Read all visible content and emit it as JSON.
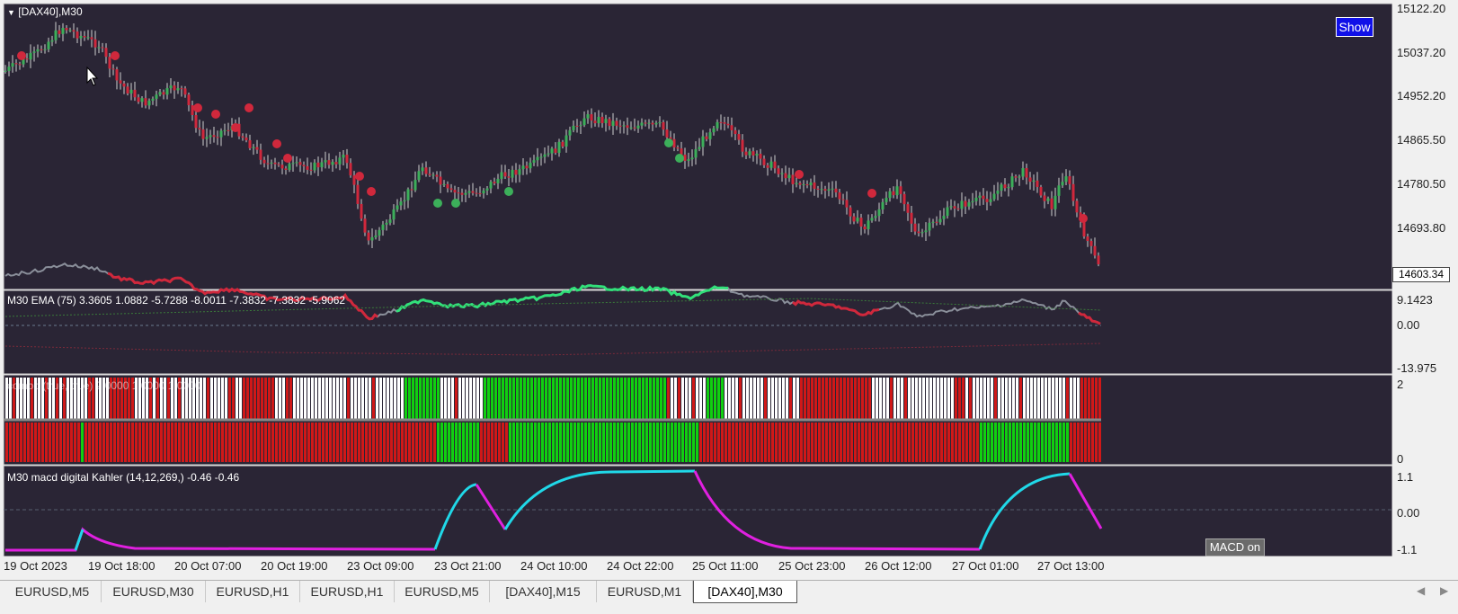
{
  "main_chart": {
    "title": "[DAX40],M30",
    "price_ticks": [
      "15122.20",
      "15037.20",
      "14952.20",
      "14865.50",
      "14780.50",
      "14693.80"
    ],
    "current_price": "14603.34",
    "show_button": "Show",
    "colors": {
      "bg": "#2a2535",
      "bull": "#3caf5a",
      "bear": "#d0283c",
      "wick": "#c8c8c8"
    }
  },
  "ema_panel": {
    "label": "M30 EMA (75) 3.3605 1.0882 -5.7288 -8.0011 -7.3832 -7.3832 -5.9062",
    "ticks": [
      "9.1423",
      "0.00",
      "-13.975"
    ]
  },
  "combo_panel": {
    "label": "combo (true, true) 2.0000 1.0000 1.0000",
    "ticks": [
      "2",
      "0"
    ]
  },
  "macd_panel": {
    "label": "M30   macd digital Kahler (14,12,269,) -0.46 -0.46",
    "ticks": [
      "1.1",
      "0.00",
      "-1.1"
    ],
    "macd_button": "MACD on"
  },
  "time_axis": [
    "19 Oct 2023",
    "19 Oct 18:00",
    "20 Oct 07:00",
    "20 Oct 19:00",
    "23 Oct 09:00",
    "23 Oct 21:00",
    "24 Oct 10:00",
    "24 Oct 22:00",
    "25 Oct 11:00",
    "25 Oct 23:00",
    "26 Oct 12:00",
    "27 Oct 01:00",
    "27 Oct 13:00"
  ],
  "tabs": [
    {
      "label": "EURUSD,M5",
      "active": false
    },
    {
      "label": "EURUSD,M30",
      "active": false
    },
    {
      "label": "EURUSD,H1",
      "active": false
    },
    {
      "label": "EURUSD,H1",
      "active": false
    },
    {
      "label": "EURUSD,M5",
      "active": false
    },
    {
      "label": "[DAX40],M15",
      "active": false
    },
    {
      "label": "EURUSD,M1",
      "active": false
    },
    {
      "label": "[DAX40],M30",
      "active": true
    }
  ],
  "scroll_left_icon": "scroll-left-icon",
  "scroll_right_icon": "scroll-right-icon"
}
